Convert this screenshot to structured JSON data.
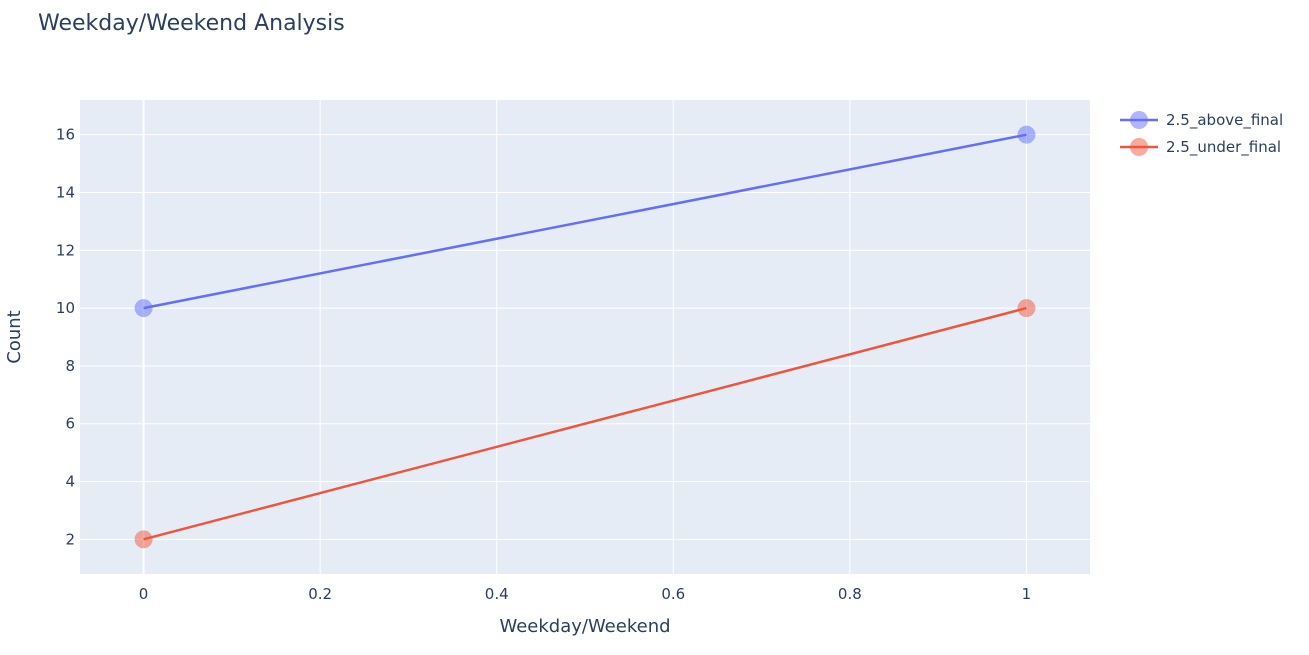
{
  "chart_data": {
    "type": "line",
    "title": "Weekday/Weekend Analysis",
    "xlabel": "Weekday/Weekend",
    "ylabel": "Count",
    "x": [
      0,
      1
    ],
    "xlim": [
      -0.072,
      1.072
    ],
    "ylim": [
      0.8,
      17.2
    ],
    "x_ticks": [
      {
        "value": 0,
        "label": "0"
      },
      {
        "value": 0.2,
        "label": "0.2"
      },
      {
        "value": 0.4,
        "label": "0.4"
      },
      {
        "value": 0.6,
        "label": "0.6"
      },
      {
        "value": 0.8,
        "label": "0.8"
      },
      {
        "value": 1,
        "label": "1"
      }
    ],
    "y_ticks": [
      {
        "value": 2,
        "label": "2"
      },
      {
        "value": 4,
        "label": "4"
      },
      {
        "value": 6,
        "label": "6"
      },
      {
        "value": 8,
        "label": "8"
      },
      {
        "value": 10,
        "label": "10"
      },
      {
        "value": 12,
        "label": "12"
      },
      {
        "value": 14,
        "label": "14"
      },
      {
        "value": 16,
        "label": "16"
      }
    ],
    "grid": true,
    "legend_position": "top-right",
    "series": [
      {
        "name": "2.5_above_final",
        "values": [
          10,
          16
        ],
        "color": "#636efa"
      },
      {
        "name": "2.5_under_final",
        "values": [
          2,
          10
        ],
        "color": "#ef553b"
      }
    ],
    "plot_background": "#e5ecf6"
  }
}
